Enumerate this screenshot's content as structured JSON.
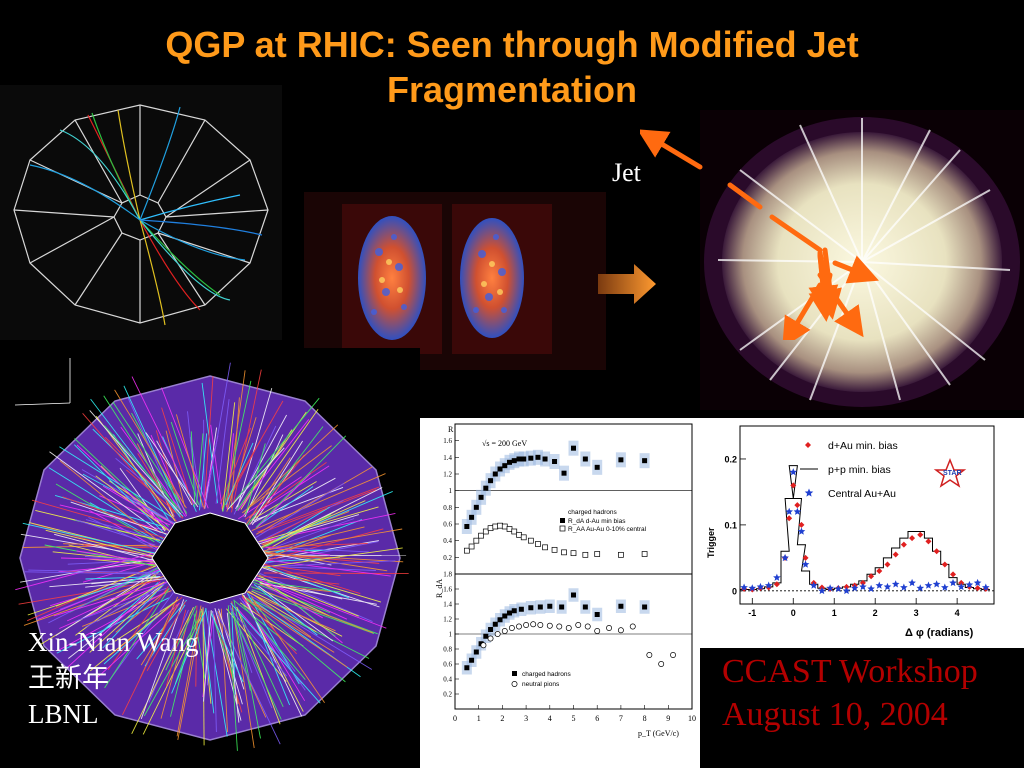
{
  "slide": {
    "title_line1": "QGP at RHIC: Seen through Modified Jet",
    "title_line2": "Fragmentation",
    "jet_label": "Jet",
    "author_name": "Xin-Nian Wang",
    "author_chinese": "王新年",
    "institution": "LBNL",
    "workshop": "CCAST Workshop",
    "date": "August 10, 2004",
    "colors": {
      "title": "#ff9a1a",
      "workshop": "#b30000",
      "arrow": "#ff6a10"
    }
  },
  "chart_data": [
    {
      "type": "scatter",
      "title": "",
      "panel": "top",
      "annotation": "√s = 200 GeV",
      "ylabel": "R",
      "ylim": [
        0,
        1.8
      ],
      "xlim": [
        0,
        10
      ],
      "yticks": [
        "0.2",
        "0.4",
        "0.6",
        "0.8",
        "1",
        "1.2",
        "1.4",
        "1.6"
      ],
      "legend": [
        "charged hadrons",
        "R_dA  d-Au min bias",
        "R_AA  Au-Au 0-10% central"
      ],
      "series": [
        {
          "name": "R_dA  d-Au min bias",
          "marker": "filled-square",
          "x": [
            0.5,
            0.7,
            0.9,
            1.1,
            1.3,
            1.5,
            1.7,
            1.9,
            2.1,
            2.3,
            2.5,
            2.7,
            2.9,
            3.2,
            3.5,
            3.8,
            4.2,
            4.6,
            5.0,
            5.5,
            6.0,
            7.0,
            8.0
          ],
          "y": [
            0.57,
            0.68,
            0.8,
            0.92,
            1.03,
            1.12,
            1.2,
            1.26,
            1.3,
            1.34,
            1.36,
            1.38,
            1.38,
            1.39,
            1.4,
            1.38,
            1.35,
            1.21,
            1.51,
            1.38,
            1.28,
            1.37,
            1.36
          ]
        },
        {
          "name": "R_AA  Au-Au 0-10% central",
          "marker": "open-square",
          "x": [
            0.5,
            0.7,
            0.9,
            1.1,
            1.3,
            1.5,
            1.7,
            1.9,
            2.1,
            2.3,
            2.5,
            2.7,
            2.9,
            3.2,
            3.5,
            3.8,
            4.2,
            4.6,
            5.0,
            5.5,
            6.0,
            7.0,
            8.0
          ],
          "y": [
            0.28,
            0.33,
            0.4,
            0.46,
            0.51,
            0.55,
            0.57,
            0.58,
            0.57,
            0.54,
            0.51,
            0.47,
            0.44,
            0.4,
            0.36,
            0.32,
            0.29,
            0.26,
            0.25,
            0.23,
            0.24,
            0.23,
            0.24
          ]
        }
      ]
    },
    {
      "type": "scatter",
      "title": "",
      "panel": "bottom",
      "xlabel": "p_T (GeV/c)",
      "ylabel": "R_dA",
      "ylim": [
        0,
        1.8
      ],
      "xlim": [
        0,
        10
      ],
      "xticks": [
        "0",
        "1",
        "2",
        "3",
        "4",
        "5",
        "6",
        "7",
        "8",
        "9",
        "10"
      ],
      "yticks": [
        "0.2",
        "0.4",
        "0.6",
        "0.8",
        "1",
        "1.2",
        "1.4",
        "1.6",
        "1.8"
      ],
      "legend": [
        "charged hadrons",
        "neutral pions"
      ],
      "series": [
        {
          "name": "charged hadrons",
          "marker": "filled-square",
          "x": [
            0.5,
            0.7,
            0.9,
            1.1,
            1.3,
            1.5,
            1.7,
            1.9,
            2.1,
            2.3,
            2.5,
            2.8,
            3.2,
            3.6,
            4.0,
            4.5,
            5.0,
            5.5,
            6.0,
            7.0,
            8.0
          ],
          "y": [
            0.55,
            0.65,
            0.76,
            0.87,
            0.97,
            1.06,
            1.13,
            1.19,
            1.24,
            1.28,
            1.31,
            1.33,
            1.35,
            1.36,
            1.37,
            1.36,
            1.52,
            1.36,
            1.26,
            1.37,
            1.36
          ]
        },
        {
          "name": "neutral pions",
          "marker": "open-circle",
          "x": [
            1.2,
            1.5,
            1.8,
            2.1,
            2.4,
            2.7,
            3.0,
            3.3,
            3.6,
            4.0,
            4.4,
            4.8,
            5.2,
            5.6,
            6.0,
            6.5,
            7.0,
            7.5,
            8.2,
            8.7,
            9.2
          ],
          "y": [
            0.85,
            0.94,
            1.0,
            1.04,
            1.08,
            1.1,
            1.12,
            1.13,
            1.12,
            1.11,
            1.1,
            1.08,
            1.12,
            1.1,
            1.04,
            1.08,
            1.05,
            1.1,
            0.72,
            0.6,
            0.72
          ]
        }
      ]
    },
    {
      "type": "scatter",
      "title": "",
      "xlabel": "Δ φ (radians)",
      "ylabel": "Trigger",
      "xlim": [
        -1.3,
        4.9
      ],
      "ylim": [
        -0.02,
        0.25
      ],
      "xticks": [
        "-1",
        "0",
        "1",
        "2",
        "3",
        "4"
      ],
      "yticks": [
        "0",
        "0.1",
        "0.2"
      ],
      "legend": [
        "d+Au min. bias",
        "p+p min. bias",
        "Central Au+Au"
      ],
      "logo": "STAR",
      "series": [
        {
          "name": "d+Au min. bias",
          "marker": "red-diamond",
          "x": [
            -1.2,
            -1.0,
            -0.8,
            -0.6,
            -0.4,
            -0.2,
            -0.1,
            0.0,
            0.1,
            0.2,
            0.3,
            0.5,
            0.7,
            0.9,
            1.1,
            1.3,
            1.5,
            1.7,
            1.9,
            2.1,
            2.3,
            2.5,
            2.7,
            2.9,
            3.1,
            3.3,
            3.5,
            3.7,
            3.9,
            4.1,
            4.3,
            4.5,
            4.7
          ],
          "y": [
            0.003,
            0.002,
            0.004,
            0.005,
            0.01,
            0.05,
            0.11,
            0.16,
            0.13,
            0.1,
            0.05,
            0.012,
            0.005,
            0.003,
            0.004,
            0.006,
            0.008,
            0.012,
            0.022,
            0.03,
            0.04,
            0.055,
            0.07,
            0.08,
            0.085,
            0.075,
            0.06,
            0.04,
            0.025,
            0.012,
            0.006,
            0.004,
            0.003
          ]
        },
        {
          "name": "p+p min. bias",
          "marker": "histogram",
          "x": [
            -1.2,
            -1.0,
            -0.8,
            -0.6,
            -0.4,
            -0.2,
            -0.1,
            0.0,
            0.1,
            0.2,
            0.3,
            0.5,
            0.7,
            0.9,
            1.1,
            1.3,
            1.5,
            1.7,
            1.9,
            2.1,
            2.3,
            2.5,
            2.7,
            2.9,
            3.1,
            3.3,
            3.5,
            3.7,
            3.9,
            4.1,
            4.3,
            4.5,
            4.7
          ],
          "y": [
            0.002,
            0.002,
            0.003,
            0.006,
            0.012,
            0.06,
            0.14,
            0.19,
            0.14,
            0.07,
            0.03,
            0.01,
            0.004,
            0.002,
            0.004,
            0.006,
            0.01,
            0.015,
            0.025,
            0.035,
            0.05,
            0.065,
            0.08,
            0.09,
            0.09,
            0.08,
            0.06,
            0.04,
            0.02,
            0.01,
            0.005,
            0.003,
            0.002
          ]
        },
        {
          "name": "Central Au+Au",
          "marker": "blue-star",
          "x": [
            -1.2,
            -1.0,
            -0.8,
            -0.6,
            -0.4,
            -0.2,
            -0.1,
            0.0,
            0.1,
            0.2,
            0.3,
            0.5,
            0.7,
            0.9,
            1.1,
            1.3,
            1.5,
            1.7,
            1.9,
            2.1,
            2.3,
            2.5,
            2.7,
            2.9,
            3.1,
            3.3,
            3.5,
            3.7,
            3.9,
            4.1,
            4.3,
            4.5,
            4.7
          ],
          "y": [
            0.005,
            0.004,
            0.006,
            0.008,
            0.02,
            0.05,
            0.12,
            0.18,
            0.12,
            0.09,
            0.04,
            0.008,
            0.0,
            0.004,
            0.003,
            0.0,
            0.004,
            0.006,
            0.003,
            0.008,
            0.006,
            0.01,
            0.005,
            0.012,
            0.004,
            0.008,
            0.01,
            0.005,
            0.012,
            0.006,
            0.009,
            0.012,
            0.005
          ]
        }
      ]
    }
  ]
}
